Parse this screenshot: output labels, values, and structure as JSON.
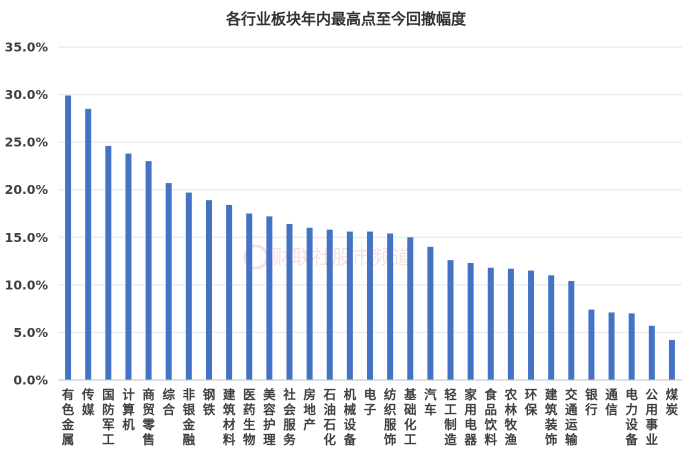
{
  "chart_data": {
    "type": "bar",
    "title": "各行业板块年内最高点至今回撤幅度",
    "categories": [
      "有色金属",
      "传媒",
      "国防军工",
      "计算机",
      "商贸零售",
      "综合",
      "非银金融",
      "钢铁",
      "建筑材料",
      "医药生物",
      "美容护理",
      "社会服务",
      "房地产",
      "石油石化",
      "机械设备",
      "电子",
      "纺织服饰",
      "基础化工",
      "汽车",
      "轻工制造",
      "家用电器",
      "食品饮料",
      "农林牧渔",
      "环保",
      "建筑装饰",
      "交通运输",
      "银行",
      "通信",
      "电力设备",
      "公用事业",
      "煤炭"
    ],
    "series": [
      {
        "values": [
          29.9,
          28.5,
          24.6,
          23.8,
          23.0,
          20.7,
          19.7,
          18.9,
          18.4,
          17.5,
          17.2,
          16.4,
          16.0,
          15.8,
          15.6,
          15.6,
          15.4,
          15.0,
          14.0,
          12.6,
          12.3,
          11.8,
          11.7,
          11.5,
          11.0,
          10.4,
          7.4,
          7.1,
          7.0,
          5.7,
          4.2
        ]
      }
    ],
    "yticks": [
      "0.0%",
      "5.0%",
      "10.0%",
      "15.0%",
      "20.0%",
      "25.0%",
      "30.0%",
      "35.0%"
    ],
    "ylim": [
      0,
      35
    ],
    "grid": true,
    "colors": {
      "bar": "#4472C4",
      "grid": "#e6e6e6"
    }
  },
  "watermark": "财联社股市频道"
}
